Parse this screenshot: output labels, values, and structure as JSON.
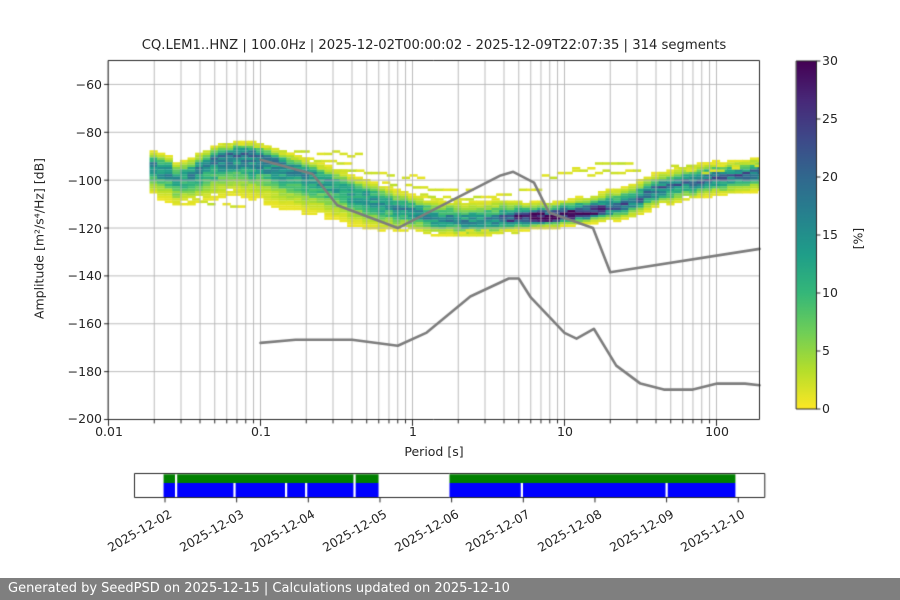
{
  "title": "CQ.LEM1..HNZ | 100.0Hz | 2025-12-02T00:00:02 - 2025-12-09T22:07:35 | 314 segments",
  "chart_data": {
    "type": "heatmap",
    "title": "CQ.LEM1..HNZ | 100.0Hz | 2025-12-02T00:00:02 - 2025-12-09T22:07:35 | 314 segments",
    "xlabel": "Period [s]",
    "ylabel": "Amplitude [m²/s⁴/Hz] [dB]",
    "xscale": "log",
    "xlim": [
      0.01,
      192
    ],
    "ylim": [
      -200,
      -50
    ],
    "grid": true,
    "xtick_labels": [
      "0.01",
      "0.1",
      "1",
      "10",
      "100"
    ],
    "ytick_labels": [
      "−60",
      "−80",
      "−100",
      "−120",
      "−140",
      "−160",
      "−180",
      "−200"
    ],
    "yticks": [
      -60,
      -80,
      -100,
      -120,
      -140,
      -160,
      -180,
      -200
    ],
    "colorbar": {
      "label": "[%]",
      "vmin": 0,
      "vmax": 30,
      "ticks": [
        0,
        5,
        10,
        15,
        20,
        25,
        30
      ],
      "tick_labels": [
        "0",
        "5",
        "10",
        "15",
        "20",
        "25",
        "30"
      ],
      "cmap": "viridis_r"
    },
    "psd_profile": [
      {
        "logp": -1.73,
        "peak_pct": 16,
        "center_db": -93.5,
        "sigma_above": 2.6,
        "sigma_below": 5.0
      },
      {
        "logp": -1.62,
        "peak_pct": 17,
        "center_db": -96.0,
        "sigma_above": 2.8,
        "sigma_below": 5.0
      },
      {
        "logp": -1.54,
        "peak_pct": 14,
        "center_db": -99.0,
        "sigma_above": 2.6,
        "sigma_below": 5.0
      },
      {
        "logp": -1.46,
        "peak_pct": 15,
        "center_db": -97.0,
        "sigma_above": 2.8,
        "sigma_below": 5.5
      },
      {
        "logp": -1.33,
        "peak_pct": 17,
        "center_db": -92.5,
        "sigma_above": 2.6,
        "sigma_below": 6.5
      },
      {
        "logp": -1.19,
        "peak_pct": 19,
        "center_db": -89.5,
        "sigma_above": 2.2,
        "sigma_below": 7.0
      },
      {
        "logp": -1.08,
        "peak_pct": 19,
        "center_db": -89.0,
        "sigma_above": 2.2,
        "sigma_below": 7.5
      },
      {
        "logp": -1.0,
        "peak_pct": 18,
        "center_db": -90.5,
        "sigma_above": 2.3,
        "sigma_below": 7.5
      },
      {
        "logp": -0.85,
        "peak_pct": 16,
        "center_db": -93.5,
        "sigma_above": 2.5,
        "sigma_below": 7.5
      },
      {
        "logp": -0.7,
        "peak_pct": 15,
        "center_db": -97.0,
        "sigma_above": 2.6,
        "sigma_below": 7.0
      },
      {
        "logp": -0.52,
        "peak_pct": 14,
        "center_db": -102.0,
        "sigma_above": 3.0,
        "sigma_below": 6.0
      },
      {
        "logp": -0.35,
        "peak_pct": 14,
        "center_db": -106.0,
        "sigma_above": 3.2,
        "sigma_below": 5.5
      },
      {
        "logp": -0.15,
        "peak_pct": 15,
        "center_db": -110.5,
        "sigma_above": 3.2,
        "sigma_below": 4.5
      },
      {
        "logp": 0.0,
        "peak_pct": 15,
        "center_db": -113.5,
        "sigma_above": 3.2,
        "sigma_below": 3.5
      },
      {
        "logp": 0.2,
        "peak_pct": 16,
        "center_db": -116.5,
        "sigma_above": 3.4,
        "sigma_below": 2.8
      },
      {
        "logp": 0.4,
        "peak_pct": 16,
        "center_db": -117.5,
        "sigma_above": 3.6,
        "sigma_below": 2.6
      },
      {
        "logp": 0.55,
        "peak_pct": 17,
        "center_db": -117.0,
        "sigma_above": 3.8,
        "sigma_below": 2.4
      },
      {
        "logp": 0.63,
        "peak_pct": 24,
        "center_db": -116.5,
        "sigma_above": 3.2,
        "sigma_below": 2.0
      },
      {
        "logp": 0.8,
        "peak_pct": 30,
        "center_db": -116.0,
        "sigma_above": 2.6,
        "sigma_below": 1.7
      },
      {
        "logp": 1.0,
        "peak_pct": 30,
        "center_db": -115.0,
        "sigma_above": 2.6,
        "sigma_below": 1.7
      },
      {
        "logp": 1.19,
        "peak_pct": 27,
        "center_db": -113.5,
        "sigma_above": 2.8,
        "sigma_below": 1.8
      },
      {
        "logp": 1.3,
        "peak_pct": 21,
        "center_db": -112.0,
        "sigma_above": 3.2,
        "sigma_below": 2.2
      },
      {
        "logp": 1.48,
        "peak_pct": 19,
        "center_db": -108.5,
        "sigma_above": 3.2,
        "sigma_below": 2.6
      },
      {
        "logp": 1.62,
        "peak_pct": 19,
        "center_db": -103.5,
        "sigma_above": 2.8,
        "sigma_below": 3.0
      },
      {
        "logp": 1.78,
        "peak_pct": 19,
        "center_db": -101.5,
        "sigma_above": 2.8,
        "sigma_below": 3.0
      },
      {
        "logp": 1.95,
        "peak_pct": 20,
        "center_db": -99.5,
        "sigma_above": 2.6,
        "sigma_below": 3.0
      },
      {
        "logp": 2.11,
        "peak_pct": 20,
        "center_db": -98.0,
        "sigma_above": 2.6,
        "sigma_below": 3.0
      },
      {
        "logp": 2.29,
        "peak_pct": 20,
        "center_db": -96.8,
        "sigma_above": 2.4,
        "sigma_below": 3.2
      }
    ],
    "outlier_traces": [
      [
        [
          -1.25,
          -85.5
        ],
        [
          -1.1,
          -85.0
        ],
        [
          -0.95,
          -86.0
        ]
      ],
      [
        [
          -0.88,
          -88.5
        ],
        [
          -0.7,
          -88.0
        ],
        [
          -0.5,
          -89.0
        ],
        [
          -0.32,
          -90.0
        ]
      ],
      [
        [
          -0.8,
          -91.5
        ],
        [
          -0.6,
          -92.0
        ],
        [
          -0.42,
          -93.5
        ]
      ],
      [
        [
          -0.62,
          -95.5
        ],
        [
          -0.4,
          -96.0
        ],
        [
          -0.15,
          -97.5
        ],
        [
          0.05,
          -99.0
        ]
      ],
      [
        [
          -0.3,
          -100.5
        ],
        [
          -0.05,
          -102.0
        ],
        [
          0.15,
          -104.0
        ],
        [
          0.35,
          -103.5
        ]
      ],
      [
        [
          0.05,
          -106.5
        ],
        [
          0.25,
          -108.0
        ],
        [
          0.45,
          -107.0
        ],
        [
          0.6,
          -105.5
        ],
        [
          0.72,
          -103.5
        ],
        [
          0.85,
          -104.5
        ]
      ],
      [
        [
          0.85,
          -99.0
        ],
        [
          1.0,
          -97.0
        ],
        [
          1.1,
          -96.0
        ]
      ],
      [
        [
          1.05,
          -95.5
        ],
        [
          1.2,
          -93.5
        ],
        [
          1.33,
          -92.8
        ],
        [
          1.45,
          -94.0
        ]
      ],
      [
        [
          1.15,
          -97.5
        ],
        [
          1.35,
          -96.5
        ],
        [
          1.5,
          -96.0
        ]
      ],
      [
        [
          1.7,
          -94.5
        ],
        [
          1.9,
          -93.5
        ],
        [
          2.05,
          -94.0
        ],
        [
          2.2,
          -93.2
        ],
        [
          2.28,
          -93.0
        ]
      ],
      [
        [
          1.75,
          -97.0
        ],
        [
          1.95,
          -96.0
        ],
        [
          2.1,
          -95.5
        ]
      ],
      [
        [
          -1.45,
          -109.0
        ],
        [
          -1.25,
          -110.5
        ],
        [
          -1.05,
          -111.0
        ]
      ],
      [
        [
          0.3,
          -121.5
        ],
        [
          0.5,
          -122.0
        ],
        [
          0.68,
          -121.0
        ]
      ]
    ],
    "noise_models": {
      "color": "#7d7d7d",
      "high": [
        [
          0.1,
          -91.5
        ],
        [
          0.22,
          -97.4
        ],
        [
          0.32,
          -110.5
        ],
        [
          0.8,
          -120.0
        ],
        [
          3.8,
          -98.0
        ],
        [
          4.6,
          -96.5
        ],
        [
          6.3,
          -101.0
        ],
        [
          7.9,
          -113.5
        ],
        [
          15.4,
          -120.0
        ],
        [
          20.0,
          -138.5
        ],
        [
          192.0,
          -128.7
        ]
      ],
      "low": [
        [
          0.1,
          -168.0
        ],
        [
          0.17,
          -166.7
        ],
        [
          0.4,
          -166.7
        ],
        [
          0.8,
          -169.2
        ],
        [
          1.24,
          -163.7
        ],
        [
          2.4,
          -148.6
        ],
        [
          4.3,
          -141.1
        ],
        [
          5.0,
          -141.1
        ],
        [
          6.0,
          -149.0
        ],
        [
          10.0,
          -163.8
        ],
        [
          12.0,
          -166.2
        ],
        [
          15.6,
          -162.1
        ],
        [
          21.9,
          -177.5
        ],
        [
          31.6,
          -185.0
        ],
        [
          45.0,
          -187.5
        ],
        [
          70.0,
          -187.5
        ],
        [
          101.0,
          -185.0
        ],
        [
          154.0,
          -185.0
        ],
        [
          192.0,
          -185.7
        ]
      ]
    },
    "viridis_stops": [
      "#440154",
      "#482878",
      "#3e4989",
      "#31688e",
      "#26828e",
      "#1f9e89",
      "#35b779",
      "#6ece58",
      "#b5de2b",
      "#fde725"
    ]
  },
  "timeline": {
    "dates": [
      "2025-12-02",
      "2025-12-03",
      "2025-12-04",
      "2025-12-05",
      "2025-12-06",
      "2025-12-07",
      "2025-12-08",
      "2025-12-09",
      "2025-12-10"
    ],
    "coverage_color": "#008000",
    "data_color": "#0000ff",
    "bar_days": [
      -0.42,
      8.37
    ],
    "segments_days": [
      [
        -0.02,
        2.98
      ],
      [
        3.97,
        7.96
      ]
    ],
    "green_gaps_days": [
      0.155,
      2.645
    ],
    "blue_gaps_days": [
      0.155,
      0.97,
      1.69,
      1.97,
      2.645,
      4.98,
      7.0
    ]
  },
  "footer": {
    "text": "Generated by SeedPSD on 2025-12-15 | Calculations updated on 2025-12-10"
  }
}
